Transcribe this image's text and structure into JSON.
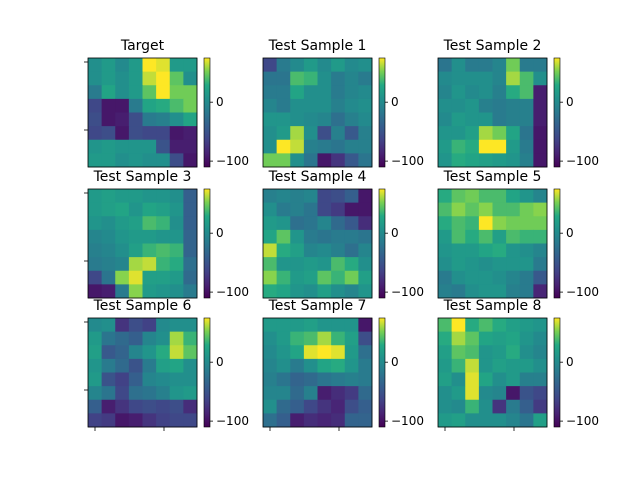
{
  "figure": {
    "background": "#ffffff"
  },
  "chart_data": {
    "type": "heatmap",
    "colormap": "viridis",
    "value_range": [
      -110,
      75
    ],
    "colorbar_ticks": [
      0,
      -100
    ],
    "colorbar_tick_labels": [
      "0",
      "−100"
    ],
    "panels": [
      {
        "title": "Target",
        "grid": [
          [
            5,
            15,
            0,
            15,
            75,
            70,
            15,
            15
          ],
          [
            5,
            15,
            5,
            15,
            65,
            75,
            45,
            5
          ],
          [
            -15,
            25,
            5,
            15,
            45,
            75,
            50,
            50
          ],
          [
            -60,
            -95,
            -95,
            -15,
            25,
            30,
            40,
            50
          ],
          [
            -55,
            -95,
            -90,
            -55,
            -15,
            -10,
            5,
            25
          ],
          [
            -60,
            -55,
            -95,
            -55,
            -60,
            -60,
            -95,
            -90
          ],
          [
            10,
            15,
            10,
            10,
            10,
            -50,
            -90,
            -90
          ],
          [
            15,
            15,
            5,
            10,
            5,
            5,
            -55,
            -95
          ]
        ]
      },
      {
        "title": "Test Sample 1",
        "grid": [
          [
            -60,
            -15,
            0,
            15,
            0,
            15,
            0,
            5
          ],
          [
            -20,
            -20,
            40,
            35,
            5,
            -15,
            -5,
            -15
          ],
          [
            -15,
            -15,
            25,
            5,
            5,
            -15,
            -5,
            0
          ],
          [
            -5,
            -15,
            5,
            5,
            5,
            -10,
            0,
            5
          ],
          [
            10,
            10,
            5,
            0,
            -5,
            -25,
            -10,
            0
          ],
          [
            5,
            15,
            60,
            5,
            -55,
            -10,
            -45,
            -10
          ],
          [
            5,
            75,
            65,
            -10,
            -15,
            -20,
            -10,
            -10
          ],
          [
            50,
            50,
            5,
            -20,
            -95,
            -75,
            -45,
            -20
          ]
        ]
      },
      {
        "title": "Test Sample 2",
        "grid": [
          [
            -20,
            5,
            -15,
            -15,
            -5,
            50,
            -15,
            -15
          ],
          [
            0,
            5,
            5,
            5,
            -5,
            60,
            40,
            5
          ],
          [
            -5,
            10,
            0,
            5,
            -10,
            30,
            40,
            -90
          ],
          [
            5,
            5,
            10,
            -10,
            -15,
            -10,
            -10,
            -90
          ],
          [
            0,
            15,
            10,
            10,
            -15,
            -10,
            -10,
            -90
          ],
          [
            10,
            10,
            20,
            60,
            50,
            25,
            -20,
            -95
          ],
          [
            15,
            35,
            30,
            75,
            75,
            15,
            -15,
            -95
          ],
          [
            10,
            30,
            25,
            20,
            15,
            10,
            -10,
            -95
          ]
        ]
      },
      {
        "title": "Test Sample 3",
        "grid": [
          [
            15,
            20,
            15,
            15,
            10,
            10,
            5,
            -40
          ],
          [
            15,
            20,
            25,
            10,
            25,
            20,
            10,
            -40
          ],
          [
            10,
            5,
            15,
            20,
            40,
            35,
            5,
            -40
          ],
          [
            -5,
            0,
            10,
            15,
            15,
            10,
            10,
            -35
          ],
          [
            -10,
            -5,
            5,
            20,
            35,
            40,
            35,
            -35
          ],
          [
            -15,
            -10,
            -5,
            60,
            65,
            35,
            30,
            -25
          ],
          [
            -60,
            -20,
            55,
            70,
            20,
            20,
            15,
            -30
          ],
          [
            -95,
            -90,
            -15,
            55,
            15,
            10,
            5,
            -15
          ]
        ]
      },
      {
        "title": "Test Sample 4",
        "grid": [
          [
            -10,
            -5,
            -10,
            -5,
            -60,
            -55,
            -40,
            -95
          ],
          [
            5,
            -15,
            -10,
            -20,
            -60,
            -70,
            -95,
            -95
          ],
          [
            15,
            10,
            -25,
            -20,
            -5,
            -30,
            -45,
            -80
          ],
          [
            25,
            45,
            10,
            -15,
            -20,
            -15,
            -15,
            -20
          ],
          [
            65,
            30,
            20,
            -5,
            0,
            -10,
            -25,
            -5
          ],
          [
            40,
            10,
            10,
            15,
            10,
            40,
            30,
            5
          ],
          [
            55,
            35,
            15,
            20,
            45,
            35,
            50,
            20
          ],
          [
            30,
            25,
            10,
            5,
            20,
            5,
            -5,
            10
          ]
        ]
      },
      {
        "title": "Test Sample 5",
        "grid": [
          [
            30,
            45,
            50,
            40,
            40,
            25,
            10,
            -5
          ],
          [
            40,
            55,
            45,
            55,
            40,
            40,
            50,
            55
          ],
          [
            30,
            40,
            35,
            75,
            55,
            50,
            50,
            50
          ],
          [
            15,
            40,
            30,
            40,
            20,
            40,
            35,
            35
          ],
          [
            10,
            15,
            15,
            25,
            30,
            10,
            5,
            -5
          ],
          [
            5,
            15,
            10,
            5,
            10,
            10,
            10,
            -15
          ],
          [
            -15,
            5,
            10,
            10,
            5,
            -5,
            -15,
            -45
          ],
          [
            -10,
            -15,
            5,
            10,
            10,
            -10,
            -15,
            -85
          ]
        ]
      },
      {
        "title": "Test Sample 6",
        "grid": [
          [
            0,
            5,
            -75,
            -55,
            -65,
            0,
            5,
            5
          ],
          [
            15,
            -20,
            -30,
            -40,
            -5,
            5,
            60,
            35
          ],
          [
            20,
            -45,
            -35,
            -5,
            10,
            30,
            65,
            45
          ],
          [
            10,
            -15,
            -30,
            -50,
            -15,
            20,
            25,
            5
          ],
          [
            15,
            -50,
            -65,
            -40,
            -5,
            0,
            5,
            5
          ],
          [
            -5,
            -20,
            -60,
            -25,
            -20,
            -10,
            10,
            15
          ],
          [
            -40,
            -90,
            -75,
            -60,
            -55,
            -60,
            -55,
            -80
          ],
          [
            -65,
            -70,
            -95,
            -90,
            -75,
            -65,
            -60,
            -60
          ]
        ]
      },
      {
        "title": "Test Sample 7",
        "grid": [
          [
            15,
            15,
            15,
            20,
            10,
            10,
            10,
            -95
          ],
          [
            5,
            15,
            35,
            40,
            60,
            35,
            20,
            -55
          ],
          [
            0,
            10,
            25,
            70,
            75,
            70,
            15,
            -25
          ],
          [
            -5,
            5,
            -15,
            5,
            25,
            30,
            10,
            -15
          ],
          [
            -10,
            -20,
            -35,
            -30,
            -20,
            -15,
            -10,
            -15
          ],
          [
            -5,
            -5,
            -30,
            -10,
            -90,
            -80,
            -70,
            -30
          ],
          [
            5,
            -30,
            -40,
            -60,
            -75,
            -85,
            -55,
            -40
          ],
          [
            -25,
            -40,
            -90,
            -80,
            -85,
            -80,
            -35,
            -35
          ]
        ]
      },
      {
        "title": "Test Sample 8",
        "grid": [
          [
            40,
            75,
            30,
            40,
            30,
            20,
            15,
            10
          ],
          [
            30,
            60,
            45,
            25,
            20,
            25,
            10,
            0
          ],
          [
            20,
            45,
            40,
            10,
            15,
            30,
            5,
            -5
          ],
          [
            15,
            35,
            65,
            10,
            20,
            15,
            15,
            5
          ],
          [
            20,
            5,
            70,
            25,
            5,
            15,
            -10,
            -10
          ],
          [
            5,
            15,
            70,
            0,
            -5,
            -95,
            -50,
            -60
          ],
          [
            5,
            0,
            35,
            5,
            -75,
            -15,
            -40,
            -70
          ],
          [
            15,
            20,
            5,
            5,
            5,
            -5,
            -20,
            20
          ]
        ]
      }
    ]
  }
}
